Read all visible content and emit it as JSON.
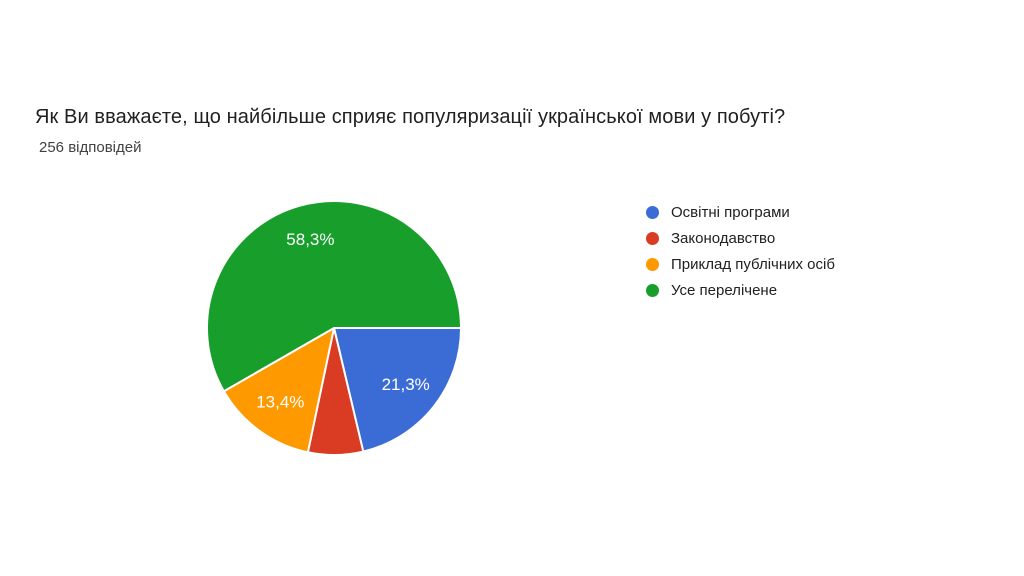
{
  "chart_data": {
    "type": "pie",
    "title": "Як Ви вважаєте, що найбільше сприяє популяризації української мови у побуті?",
    "subtitle": "256 відповідей",
    "total_responses": 256,
    "legend_position": "right",
    "start_angle_deg": 0,
    "direction": "clockwise",
    "decimal_separator": ",",
    "label_radius_ratio": 0.72,
    "slice_border_color": "#ffffff",
    "slices": [
      {
        "label": "Освітні програми",
        "value_pct": 21.3,
        "data_label": "21,3%",
        "label_visible": true,
        "color": "#3B6CD6"
      },
      {
        "label": "Законодавство",
        "value_pct": 7.0,
        "data_label": "",
        "label_visible": false,
        "color": "#D93B23"
      },
      {
        "label": "Приклад публічних осіб",
        "value_pct": 13.4,
        "data_label": "13,4%",
        "label_visible": true,
        "color": "#FF9900"
      },
      {
        "label": "Усе перелічене",
        "value_pct": 58.3,
        "data_label": "58,3%",
        "label_visible": true,
        "color": "#179E2B"
      }
    ]
  },
  "colors": {
    "title_text": "#212121",
    "subtitle_text": "#424242",
    "legend_text": "#212121",
    "background": "#ffffff",
    "slice_label_text": "#ffffff"
  }
}
